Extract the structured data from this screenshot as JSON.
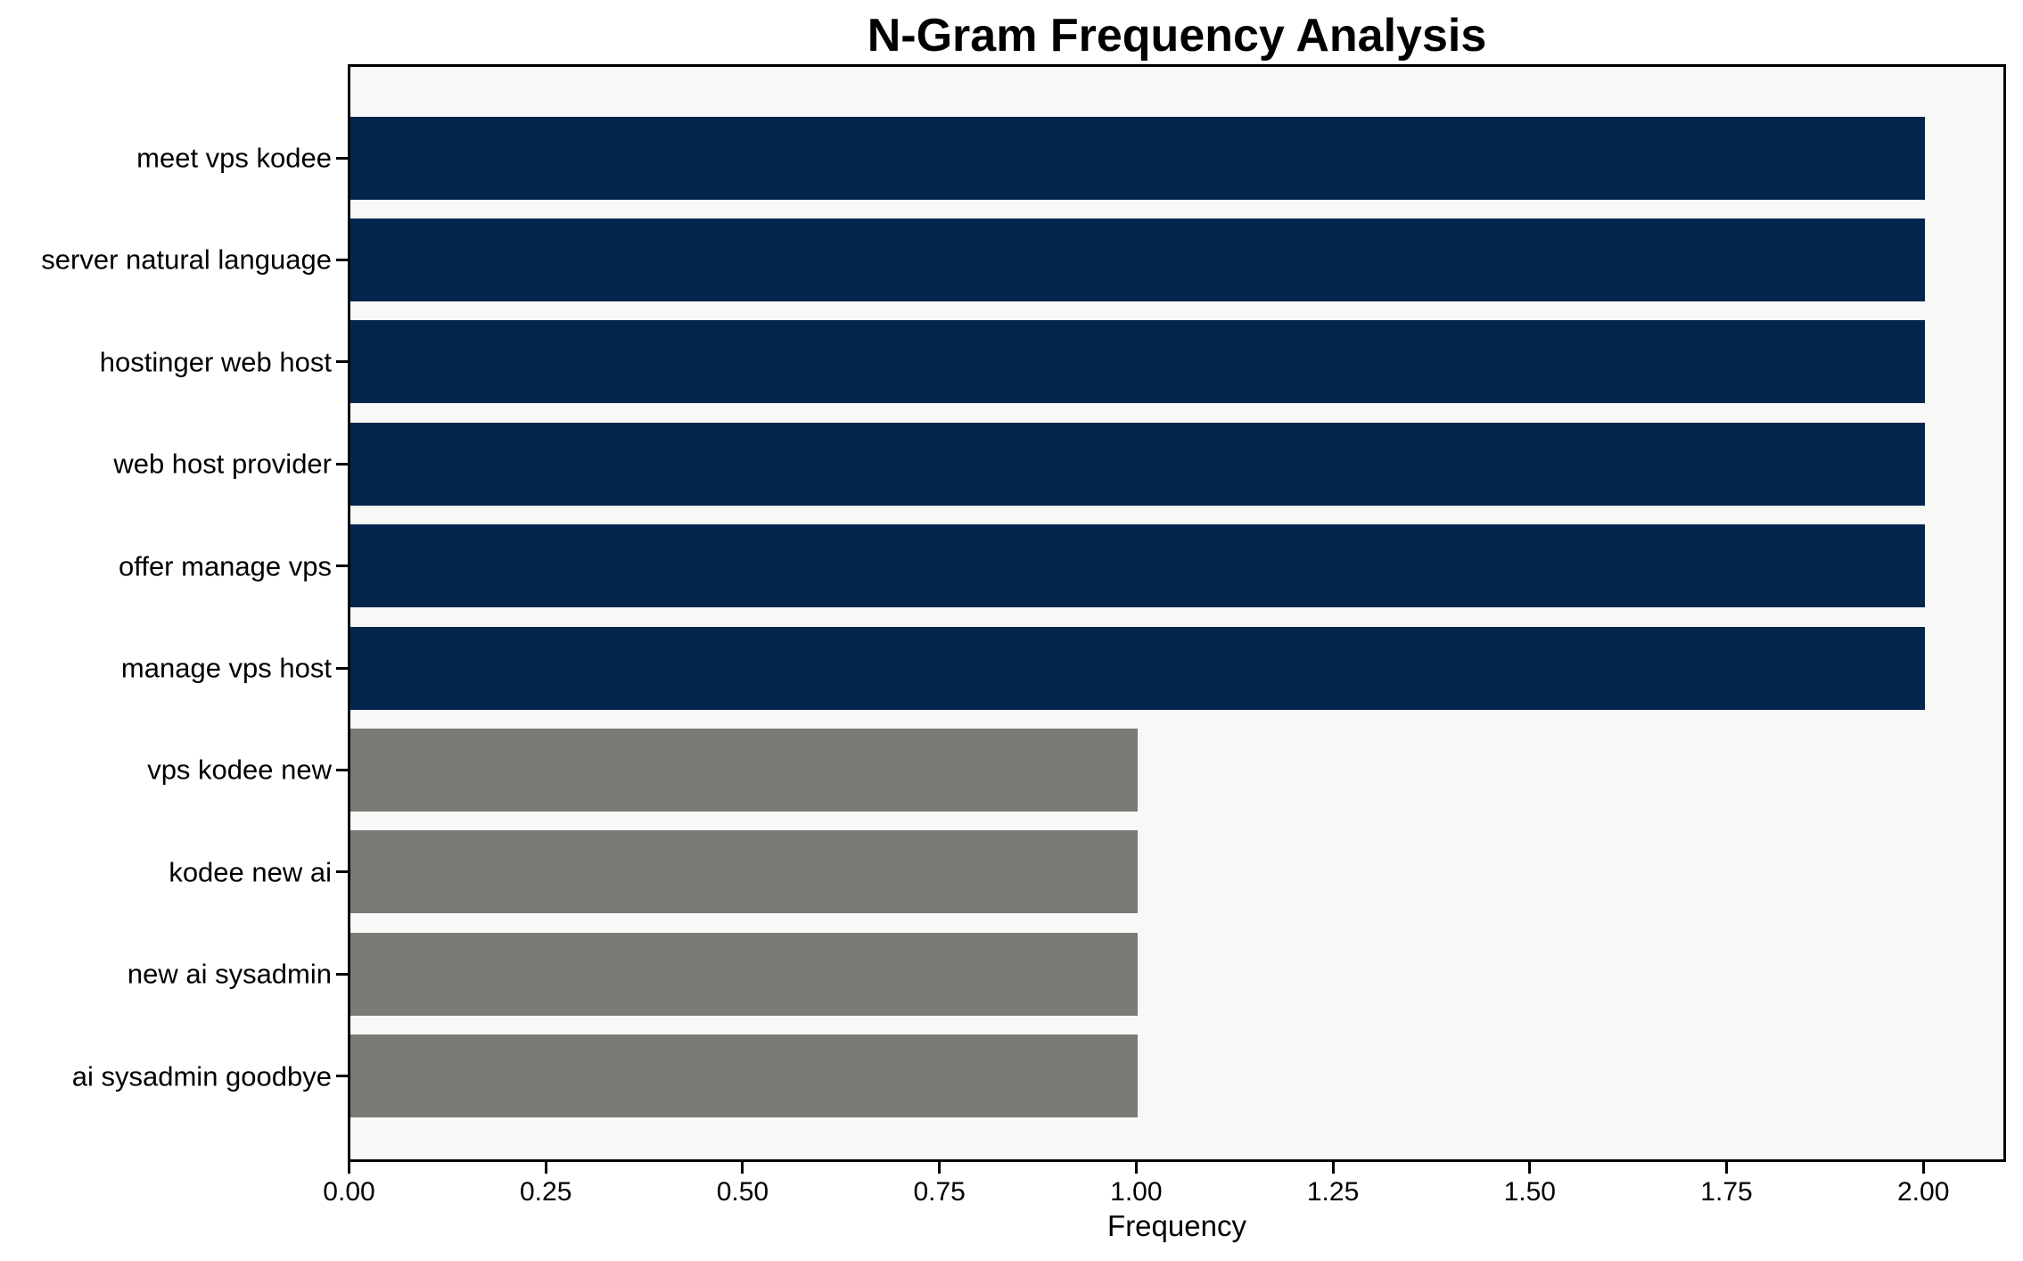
{
  "chart_data": {
    "type": "bar",
    "orientation": "horizontal",
    "title": "N-Gram Frequency Analysis",
    "xlabel": "Frequency",
    "ylabel": "",
    "categories": [
      "meet vps kodee",
      "server natural language",
      "hostinger web host",
      "web host provider",
      "offer manage vps",
      "manage vps host",
      "vps kodee new",
      "kodee new ai",
      "new ai sysadmin",
      "ai sysadmin goodbye"
    ],
    "values": [
      2,
      2,
      2,
      2,
      2,
      2,
      1,
      1,
      1,
      1
    ],
    "bar_colors": [
      "#02264e",
      "#02264e",
      "#02264e",
      "#02264e",
      "#02264e",
      "#02264e",
      "#7b7a77",
      "#7b7a77",
      "#7b7a77",
      "#7b7a77"
    ],
    "xlim": [
      0,
      2.1
    ],
    "xticks": [
      {
        "value": 0.0,
        "label": "0.00"
      },
      {
        "value": 0.25,
        "label": "0.25"
      },
      {
        "value": 0.5,
        "label": "0.50"
      },
      {
        "value": 0.75,
        "label": "0.75"
      },
      {
        "value": 1.0,
        "label": "1.00"
      },
      {
        "value": 1.25,
        "label": "1.25"
      },
      {
        "value": 1.5,
        "label": "1.50"
      },
      {
        "value": 1.75,
        "label": "1.75"
      },
      {
        "value": 2.0,
        "label": "2.00"
      }
    ],
    "grid": false,
    "legend": null,
    "colors": {
      "bar_high": "#02264e",
      "bar_low": "#7b7a77",
      "plot_background": "#f8f8f7",
      "figure_background": "#ffffff",
      "spine": "#000000",
      "text": "#000000"
    }
  }
}
